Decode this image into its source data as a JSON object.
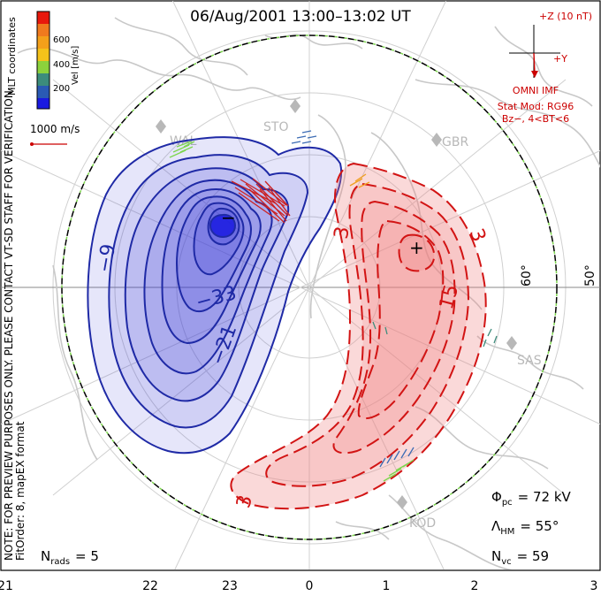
{
  "header": {
    "title": "06/Aug/2001 13:00–13:02 UT"
  },
  "colorbar": {
    "label": "Vel [m/s]",
    "ticks": [
      "600",
      "400",
      "200"
    ],
    "colors": [
      "#e8180c",
      "#f07a1e",
      "#f4c21a",
      "#8cd23c",
      "#4cb45a",
      "#3c8c7c",
      "#2a5ab4",
      "#1a1ae0"
    ],
    "coord_label": "MLT coordinates"
  },
  "scale_vector": {
    "label": "1000 m/s",
    "color": "#cc0000"
  },
  "imf": {
    "axis_z": "+Z (10 nT)",
    "axis_y": "+Y",
    "source": "OMNI IMF",
    "model": "Stat Mod: RG96",
    "condition": "Bz−, 4<BT<6",
    "color": "#cc0000"
  },
  "notice": {
    "line1": "NOTE: FOR PREVIEW PURPOSES ONLY. PLEASE CONTACT VT-SD STAFF FOR VERIFICATION.",
    "line2": "FitOrder: 8, mapEX format"
  },
  "stations": [
    "STO",
    "GBR",
    "SAS",
    "KOD",
    "WAL"
  ],
  "latitude_labels": [
    "60°",
    "50°"
  ],
  "mlt_axis": [
    "21",
    "22",
    "23",
    "0",
    "1",
    "2",
    "3"
  ],
  "contour_labels": {
    "negative": [
      "−9",
      "−33",
      "−21"
    ],
    "positive": [
      "3",
      "3",
      "15",
      "3"
    ],
    "min_marker": "−",
    "max_marker": "+"
  },
  "stats": {
    "n_rads_sym": "N",
    "n_rads_sub": "rads",
    "n_rads_val": "= 5",
    "phi_sym": "Φ",
    "phi_sub": "pc",
    "phi_val": "= 72 kV",
    "lambda_sym": "Λ",
    "lambda_sub": "HM",
    "lambda_val": "= 55°",
    "nvc_sym": "N",
    "nvc_sub": "vc",
    "nvc_val": "= 59"
  },
  "colors": {
    "negative_line": "#1f2aa6",
    "positive_line": "#d21414",
    "negative_fill": "#3a3ad8",
    "positive_fill": "#f08080",
    "coast": "#c8c8c8",
    "boundary_green": "#7cd64c"
  }
}
